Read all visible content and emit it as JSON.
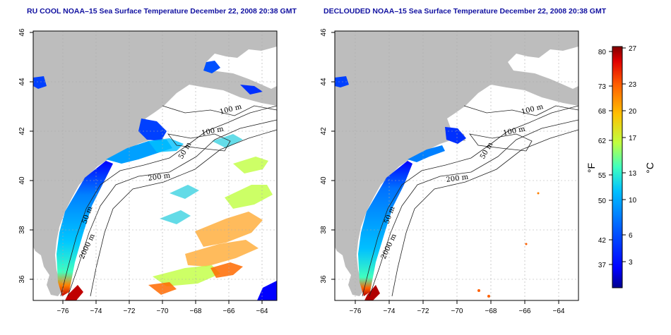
{
  "titles": {
    "left": "RU COOL NOAA–15 Sea Surface Temperature December 22, 2008 20:38 GMT",
    "right": "DECLOUDED NOAA–15 Sea Surface Temperature December 22, 2008 20:38 GMT"
  },
  "axes": {
    "x_ticks": [
      "−76",
      "−74",
      "−72",
      "−70",
      "−68",
      "−66",
      "−64"
    ],
    "y_ticks": [
      "46",
      "44",
      "42",
      "40",
      "38",
      "36"
    ]
  },
  "contour_labels": {
    "left": [
      "100 m",
      "100 m",
      "50 m",
      "200 m",
      "50 m",
      "2000 m"
    ],
    "right": [
      "100 m",
      "100 m",
      "50 m",
      "200 m",
      "50 m",
      "2000 m"
    ]
  },
  "colorbar": {
    "fahrenheit_ticks": [
      "80",
      "73",
      "68",
      "62",
      "55",
      "50",
      "42",
      "37"
    ],
    "celsius_ticks": [
      "27",
      "23",
      "20",
      "17",
      "13",
      "10",
      "6",
      "3"
    ],
    "fahrenheit_unit": "°F",
    "celsius_unit": "°C",
    "colors": [
      "#00008f",
      "#0000ff",
      "#0060ff",
      "#00c0ff",
      "#40ffc0",
      "#c0ff40",
      "#ffc000",
      "#ff6000",
      "#e00000",
      "#800000"
    ]
  },
  "colors": {
    "land": "#bdbdbd",
    "frame": "#000000",
    "grid": "#aaaaaa",
    "title": "#1010a0"
  }
}
